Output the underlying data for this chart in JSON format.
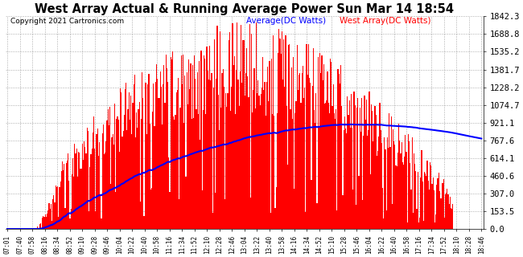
{
  "title": "West Array Actual & Running Average Power Sun Mar 14 18:54",
  "copyright": "Copyright 2021 Cartronics.com",
  "legend_average": "Average(DC Watts)",
  "legend_west": "West Array(DC Watts)",
  "yticks": [
    0.0,
    153.5,
    307.0,
    460.6,
    614.1,
    767.6,
    921.1,
    1074.7,
    1228.2,
    1381.7,
    1535.2,
    1688.8,
    1842.3
  ],
  "ymax": 1842.3,
  "ymin": 0.0,
  "bar_color": "#FF0000",
  "avg_line_color": "#0000FF",
  "background_color": "#FFFFFF",
  "grid_color": "#999999",
  "title_color": "#000000",
  "copyright_color": "#000000",
  "legend_avg_color": "#0000FF",
  "legend_west_color": "#FF0000",
  "x_labels": [
    "07:01",
    "07:40",
    "07:58",
    "08:16",
    "08:34",
    "08:52",
    "09:10",
    "09:28",
    "09:46",
    "10:04",
    "10:22",
    "10:40",
    "10:58",
    "11:16",
    "11:34",
    "11:52",
    "12:10",
    "12:28",
    "12:46",
    "13:04",
    "13:22",
    "13:40",
    "13:58",
    "14:16",
    "14:34",
    "14:52",
    "15:10",
    "15:28",
    "15:46",
    "16:04",
    "16:22",
    "16:40",
    "16:58",
    "17:16",
    "17:34",
    "17:52",
    "18:10",
    "18:28",
    "18:46"
  ]
}
